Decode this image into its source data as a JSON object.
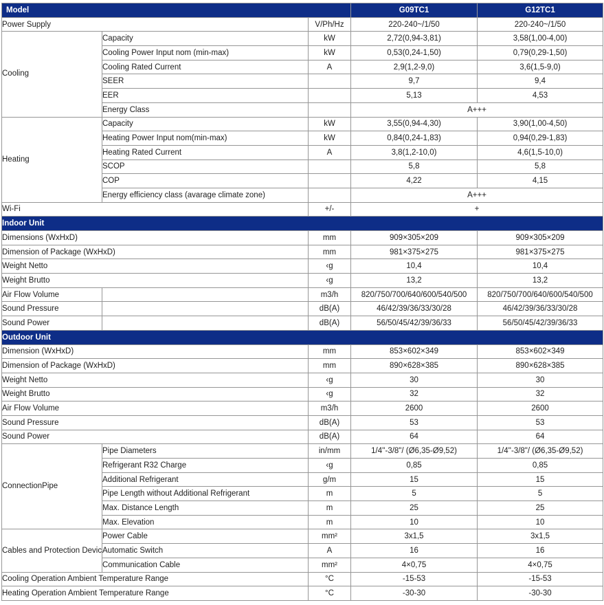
{
  "colors": {
    "header_bg": "#0e2d87",
    "header_text": "#ffffff",
    "body_text": "#212121",
    "grid_border": "#969696"
  },
  "header": {
    "model_label": "Model",
    "models": [
      "G09TC1",
      "G12TC1"
    ]
  },
  "rows": [
    {
      "type": "simple",
      "label": "Power Supply",
      "unit": "V/Ph/Hz",
      "values": [
        "220-240~/1/50",
        "220-240~/1/50"
      ]
    },
    {
      "type": "group",
      "label": "Cooling",
      "rows": [
        {
          "label": "Capacity",
          "unit": "kW",
          "values": [
            "2,72(0,94-3,81)",
            "3,58(1,00-4,00)"
          ]
        },
        {
          "label": "Cooling Power Input nom (min-max)",
          "unit": "kW",
          "values": [
            "0,53(0,24-1,50)",
            "0,79(0,29-1,50)"
          ]
        },
        {
          "label": "Cooling Rated Current",
          "unit": "A",
          "values": [
            "2,9(1,2-9,0)",
            "3,6(1,5-9,0)"
          ]
        },
        {
          "label": "SEER",
          "unit": "",
          "values": [
            "9,7",
            "9,4"
          ]
        },
        {
          "label": "EER",
          "unit": "",
          "values": [
            "5,13",
            "4,53"
          ]
        },
        {
          "label": "Energy Class",
          "unit": "",
          "merged": "A+++"
        }
      ]
    },
    {
      "type": "group",
      "label": "Heating",
      "rows": [
        {
          "label": "Capacity",
          "unit": "kW",
          "values": [
            "3,55(0,94-4,30)",
            "3,90(1,00-4,50)"
          ]
        },
        {
          "label": "Heating Power Input nom(min-max)",
          "unit": "kW",
          "values": [
            "0,84(0,24-1,83)",
            "0,94(0,29-1,83)"
          ]
        },
        {
          "label": "Heating Rated Current",
          "unit": "A",
          "values": [
            "3,8(1,2-10,0)",
            "4,6(1,5-10,0)"
          ]
        },
        {
          "label": "SCOP",
          "unit": "",
          "values": [
            "5,8",
            "5,8"
          ]
        },
        {
          "label": "COP",
          "unit": "",
          "values": [
            "4,22",
            "4,15"
          ]
        },
        {
          "label": "Energy efficiency class (avarage climate zone)",
          "unit": "",
          "merged": "A+++"
        }
      ]
    },
    {
      "type": "simple",
      "label": "Wi-Fi",
      "unit": "+/-",
      "merged": "+"
    },
    {
      "type": "section",
      "label": "Indoor Unit"
    },
    {
      "type": "simple",
      "label": "Dimensions (WxHxD)",
      "unit": "mm",
      "values": [
        "909×305×209",
        "909×305×209"
      ]
    },
    {
      "type": "simple",
      "label": "Dimension of Package (WxHxD)",
      "unit": "mm",
      "values": [
        "981×375×275",
        "981×375×275"
      ]
    },
    {
      "type": "simple",
      "label": "Weight Netto",
      "unit": "‹g",
      "values": [
        "10,4",
        "10,4"
      ]
    },
    {
      "type": "simple",
      "label": "Weight Brutto",
      "unit": "‹g",
      "values": [
        "13,2",
        "13,2"
      ]
    },
    {
      "type": "split",
      "label": "Air Flow Volume",
      "unit": "m3/h",
      "values": [
        "820/750/700/640/600/540/500",
        "820/750/700/640/600/540/500"
      ]
    },
    {
      "type": "split",
      "label": "Sound Pressure",
      "unit": "dB(A)",
      "values": [
        "46/42/39/36/33/30/28",
        "46/42/39/36/33/30/28"
      ]
    },
    {
      "type": "split",
      "label": "Sound Power",
      "unit": "dB(A)",
      "values": [
        "56/50/45/42/39/36/33",
        "56/50/45/42/39/36/33"
      ]
    },
    {
      "type": "section",
      "label": "Outdoor Unit"
    },
    {
      "type": "simple",
      "label": "Dimension (WxHxD)",
      "unit": "mm",
      "values": [
        "853×602×349",
        "853×602×349"
      ]
    },
    {
      "type": "simple",
      "label": "Dimension of Package (WxHxD)",
      "unit": "mm",
      "values": [
        "890×628×385",
        "890×628×385"
      ]
    },
    {
      "type": "simple",
      "label": "Weight Netto",
      "unit": "‹g",
      "values": [
        "30",
        "30"
      ]
    },
    {
      "type": "simple",
      "label": "Weight Brutto",
      "unit": "‹g",
      "values": [
        "32",
        "32"
      ]
    },
    {
      "type": "simple",
      "label": "Air Flow Volume",
      "unit": "m3/h",
      "values": [
        "2600",
        "2600"
      ]
    },
    {
      "type": "simple",
      "label": "Sound Pressure",
      "unit": "dB(A)",
      "values": [
        "53",
        "53"
      ]
    },
    {
      "type": "simple",
      "label": "Sound Power",
      "unit": "dB(A)",
      "values": [
        "64",
        "64"
      ]
    },
    {
      "type": "group",
      "label": "ConnectionPipe",
      "rows": [
        {
          "label": "Pipe Diameters",
          "unit": "in/mm",
          "values": [
            "1/4''-3/8\"/ (Ø6,35-Ø9,52)",
            "1/4''-3/8\"/ (Ø6,35-Ø9,52)"
          ]
        },
        {
          "label": "Refrigerant R32 Charge",
          "unit": "‹g",
          "values": [
            "0,85",
            "0,85"
          ]
        },
        {
          "label": "Additional Refrigerant",
          "unit": "g/m",
          "values": [
            "15",
            "15"
          ]
        },
        {
          "label": "Pipe Length without Additional Refrigerant",
          "unit": "m",
          "values": [
            "5",
            "5"
          ]
        },
        {
          "label": "Max. Distance Length",
          "unit": "m",
          "values": [
            "25",
            "25"
          ]
        },
        {
          "label": "Max. Elevation",
          "unit": "m",
          "values": [
            "10",
            "10"
          ]
        }
      ]
    },
    {
      "type": "group",
      "label": "Cables and Protection Devices",
      "rows": [
        {
          "label": "Power Cable",
          "unit": "mm²",
          "values": [
            "3x1,5",
            "3x1,5"
          ]
        },
        {
          "label": "Automatic Switch",
          "unit": "A",
          "values": [
            "16",
            "16"
          ]
        },
        {
          "label": "Communication Cable",
          "unit": "mm²",
          "values": [
            "4×0,75",
            "4×0,75"
          ]
        }
      ]
    },
    {
      "type": "simple",
      "label": "Cooling Operation Ambient Temperature Range",
      "unit": "°C",
      "values": [
        "-15-53",
        "-15-53"
      ]
    },
    {
      "type": "simple",
      "label": "Heating Operation Ambient Temperature Range",
      "unit": "°C",
      "values": [
        "-30-30",
        "-30-30"
      ]
    }
  ]
}
